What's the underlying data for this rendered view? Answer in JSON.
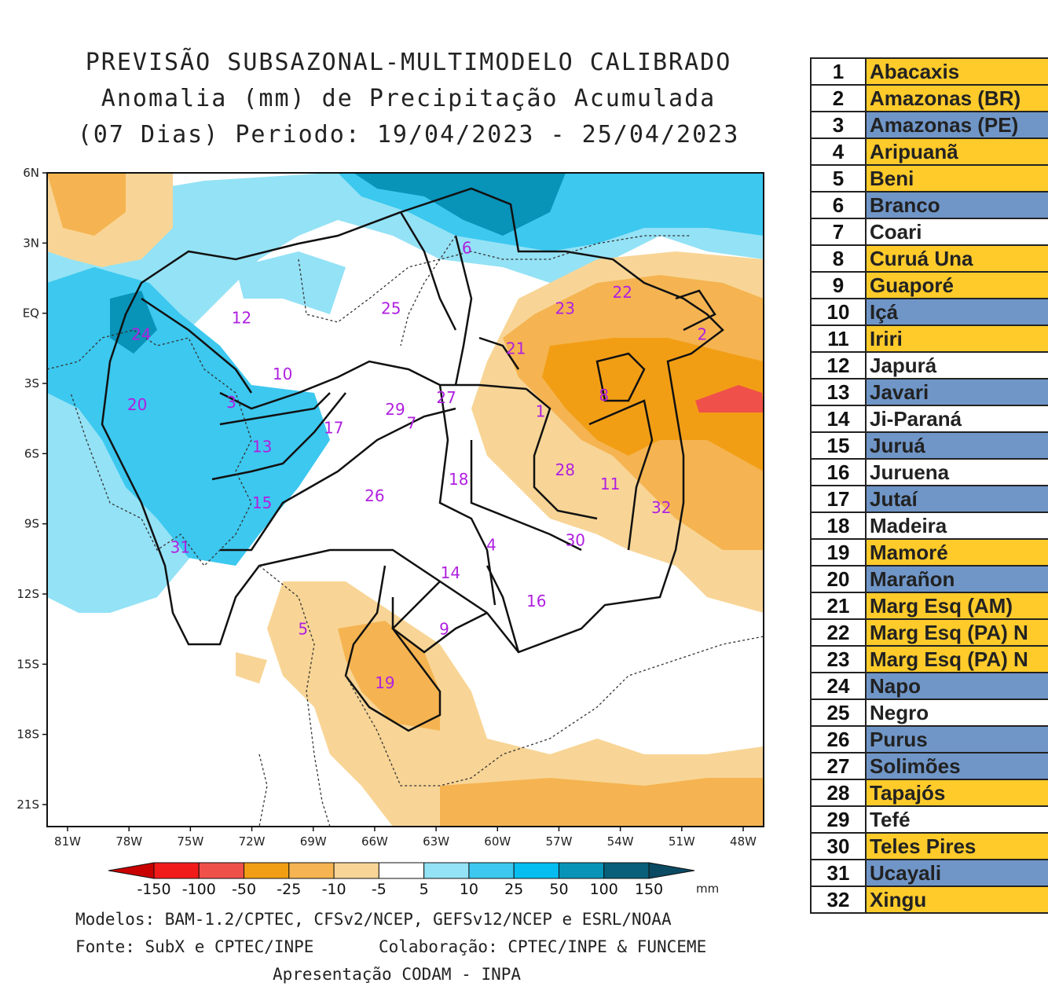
{
  "title": {
    "line1": "PREVISÃO SUBSAZONAL-MULTIMODELO CALIBRADO",
    "line2": "Anomalia (mm) de Precipitação Acumulada",
    "line3": "(07 Dias) Periodo: 19/04/2023 - 25/04/2023"
  },
  "map": {
    "lat_labels": [
      "6N",
      "3N",
      "EQ",
      "3S",
      "6S",
      "9S",
      "12S",
      "15S",
      "18S",
      "21S"
    ],
    "lon_labels": [
      "81W",
      "78W",
      "75W",
      "72W",
      "69W",
      "66W",
      "63W",
      "60W",
      "57W",
      "54W",
      "51W",
      "48W"
    ],
    "basin_labels": [
      {
        "id": "1",
        "lon": -57.9,
        "lat": -4.2
      },
      {
        "id": "2",
        "lon": -50.0,
        "lat": -0.9
      },
      {
        "id": "3",
        "lon": -73.0,
        "lat": -3.8
      },
      {
        "id": "4",
        "lon": -60.3,
        "lat": -9.9
      },
      {
        "id": "5",
        "lon": -69.5,
        "lat": -13.5
      },
      {
        "id": "6",
        "lon": -61.5,
        "lat": 2.8
      },
      {
        "id": "7",
        "lon": -64.2,
        "lat": -4.7
      },
      {
        "id": "8",
        "lon": -54.8,
        "lat": -3.5
      },
      {
        "id": "9",
        "lon": -62.6,
        "lat": -13.5
      },
      {
        "id": "10",
        "lon": -70.5,
        "lat": -2.6
      },
      {
        "id": "11",
        "lon": -54.5,
        "lat": -7.3
      },
      {
        "id": "12",
        "lon": -72.5,
        "lat": -0.2
      },
      {
        "id": "13",
        "lon": -71.5,
        "lat": -5.7
      },
      {
        "id": "14",
        "lon": -62.3,
        "lat": -11.1
      },
      {
        "id": "15",
        "lon": -71.5,
        "lat": -8.1
      },
      {
        "id": "16",
        "lon": -58.1,
        "lat": -12.3
      },
      {
        "id": "17",
        "lon": -68.0,
        "lat": -4.9
      },
      {
        "id": "18",
        "lon": -61.9,
        "lat": -7.1
      },
      {
        "id": "19",
        "lon": -65.5,
        "lat": -15.8
      },
      {
        "id": "20",
        "lon": -77.6,
        "lat": -3.9
      },
      {
        "id": "21",
        "lon": -59.1,
        "lat": -1.5
      },
      {
        "id": "22",
        "lon": -53.9,
        "lat": 0.9
      },
      {
        "id": "23",
        "lon": -56.7,
        "lat": 0.2
      },
      {
        "id": "24",
        "lon": -77.4,
        "lat": -0.9
      },
      {
        "id": "25",
        "lon": -65.2,
        "lat": 0.2
      },
      {
        "id": "26",
        "lon": -66.0,
        "lat": -7.8
      },
      {
        "id": "27",
        "lon": -62.5,
        "lat": -3.6
      },
      {
        "id": "28",
        "lon": -56.7,
        "lat": -6.7
      },
      {
        "id": "29",
        "lon": -65.0,
        "lat": -4.1
      },
      {
        "id": "30",
        "lon": -56.2,
        "lat": -9.7
      },
      {
        "id": "31",
        "lon": -75.5,
        "lat": -10.0
      },
      {
        "id": "32",
        "lon": -52.0,
        "lat": -8.3
      }
    ]
  },
  "colorbar": {
    "labels": [
      "-150",
      "-100",
      "-50",
      "-25",
      "-10",
      "-5",
      "5",
      "10",
      "25",
      "50",
      "100",
      "150"
    ],
    "unit": "mm",
    "colors": [
      "#c80000",
      "#f21b1b",
      "#f0504a",
      "#f29e15",
      "#f5b451",
      "#f8d596",
      "#ffffff",
      "#94e2f6",
      "#3cc8ef",
      "#05bdf0",
      "#0893b8",
      "#075f7a",
      "#0a4a63"
    ]
  },
  "footer": {
    "models": "Modelos: BAM-1.2/CPTEC, CFSv2/NCEP, GEFSv12/NCEP e ESRL/NOAA",
    "source": "Fonte: SubX e CPTEC/INPE",
    "collab": "Colaboração: CPTEC/INPE & FUNCEME",
    "presentation": "Apresentação CODAM - INPA"
  },
  "legend": [
    {
      "num": "1",
      "name": "Abacaxis",
      "color": "#ffcb2b"
    },
    {
      "num": "2",
      "name": "Amazonas (BR)",
      "color": "#ffcb2b"
    },
    {
      "num": "3",
      "name": "Amazonas (PE)",
      "color": "#7096c8"
    },
    {
      "num": "4",
      "name": "Aripuanã",
      "color": "#ffcb2b"
    },
    {
      "num": "5",
      "name": "Beni",
      "color": "#ffcb2b"
    },
    {
      "num": "6",
      "name": "Branco",
      "color": "#7096c8"
    },
    {
      "num": "7",
      "name": "Coari",
      "color": "#ffffff"
    },
    {
      "num": "8",
      "name": "Curuá Una",
      "color": "#ffcb2b"
    },
    {
      "num": "9",
      "name": "Guaporé",
      "color": "#ffcb2b"
    },
    {
      "num": "10",
      "name": "Içá",
      "color": "#7096c8"
    },
    {
      "num": "11",
      "name": "Iriri",
      "color": "#ffcb2b"
    },
    {
      "num": "12",
      "name": "Japurá",
      "color": "#ffffff"
    },
    {
      "num": "13",
      "name": "Javari",
      "color": "#7096c8"
    },
    {
      "num": "14",
      "name": "Ji-Paraná",
      "color": "#ffffff"
    },
    {
      "num": "15",
      "name": "Juruá",
      "color": "#7096c8"
    },
    {
      "num": "16",
      "name": "Juruena",
      "color": "#ffffff"
    },
    {
      "num": "17",
      "name": "Jutaí",
      "color": "#7096c8"
    },
    {
      "num": "18",
      "name": "Madeira",
      "color": "#ffffff"
    },
    {
      "num": "19",
      "name": "Mamoré",
      "color": "#ffcb2b"
    },
    {
      "num": "20",
      "name": "Marañon",
      "color": "#7096c8"
    },
    {
      "num": "21",
      "name": "Marg Esq (AM)",
      "color": "#ffcb2b"
    },
    {
      "num": "22",
      "name": "Marg Esq (PA) N",
      "color": "#ffcb2b"
    },
    {
      "num": "23",
      "name": "Marg Esq (PA) N",
      "color": "#ffcb2b"
    },
    {
      "num": "24",
      "name": "Napo",
      "color": "#7096c8"
    },
    {
      "num": "25",
      "name": "Negro",
      "color": "#ffffff"
    },
    {
      "num": "26",
      "name": "Purus",
      "color": "#7096c8"
    },
    {
      "num": "27",
      "name": "Solimões",
      "color": "#7096c8"
    },
    {
      "num": "28",
      "name": "Tapajós",
      "color": "#ffcb2b"
    },
    {
      "num": "29",
      "name": "Tefé",
      "color": "#ffffff"
    },
    {
      "num": "30",
      "name": "Teles Pires",
      "color": "#ffcb2b"
    },
    {
      "num": "31",
      "name": "Ucayali",
      "color": "#7096c8"
    },
    {
      "num": "32",
      "name": "Xingu",
      "color": "#ffcb2b"
    }
  ]
}
